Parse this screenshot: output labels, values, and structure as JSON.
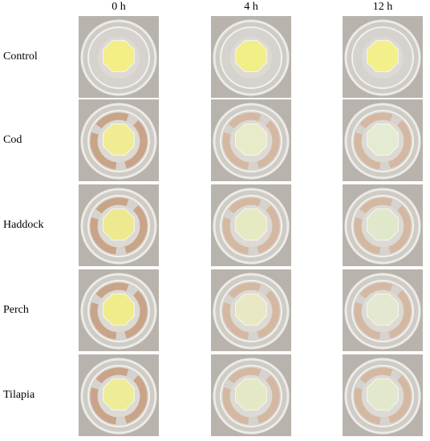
{
  "columns": [
    "0 h",
    "4 h",
    "12 h"
  ],
  "rows": [
    "Control",
    "Cod",
    "Haddock",
    "Perch",
    "Tilapia"
  ]
}
